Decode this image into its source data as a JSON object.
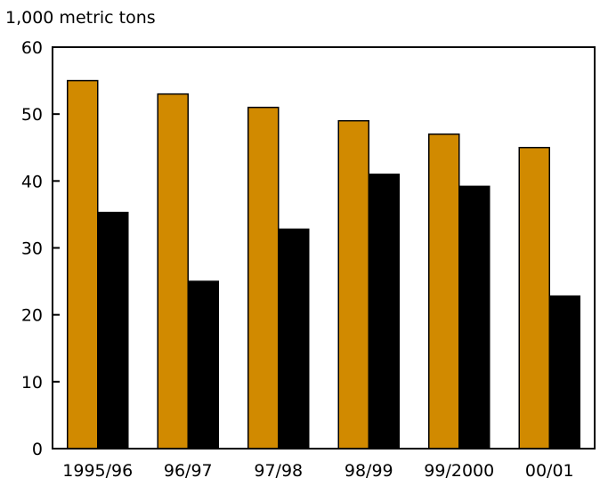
{
  "chart_data": {
    "type": "bar",
    "title": "",
    "unit_label": "1,000 metric tons",
    "xlabel": "",
    "ylabel": "",
    "categories": [
      "1995/96",
      "96/97",
      "97/98",
      "98/99",
      "99/2000",
      "00/01"
    ],
    "series": [
      {
        "color": "#d18a00",
        "values": [
          55,
          53,
          51,
          49,
          47,
          45
        ]
      },
      {
        "color": "#000000",
        "values": [
          35.3,
          25,
          32.8,
          41,
          39.2,
          22.8
        ]
      }
    ],
    "ylim": [
      0,
      60
    ],
    "yticks": [
      0,
      10,
      20,
      30,
      40,
      50,
      60
    ],
    "grid": false,
    "legend": "none"
  }
}
